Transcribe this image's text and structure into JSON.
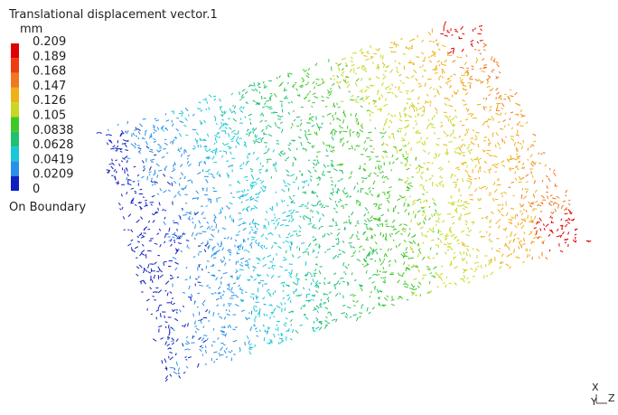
{
  "legend": {
    "title": "Translational displacement vector.1",
    "unit": "mm",
    "labels": [
      "0.209",
      "0.189",
      "0.168",
      "0.147",
      "0.126",
      "0.105",
      "0.0838",
      "0.0628",
      "0.0419",
      "0.0209",
      "0"
    ],
    "colors": [
      "#e00000",
      "#f03c10",
      "#f07820",
      "#f0b018",
      "#c8d820",
      "#40c828",
      "#20c070",
      "#18c8d8",
      "#2890e8",
      "#1020c0"
    ],
    "footer": "On Boundary"
  },
  "triad": {
    "x": "X",
    "y": "Y",
    "z": "Z"
  }
}
